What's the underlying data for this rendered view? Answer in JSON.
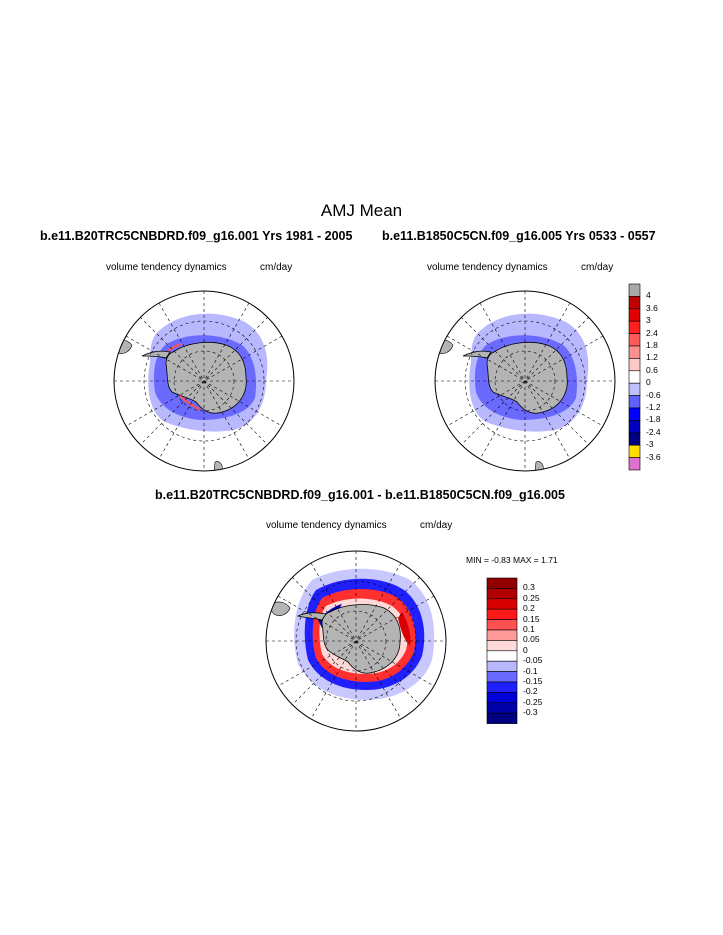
{
  "title": "AMJ Mean",
  "panels": [
    {
      "title": "b.e11.B20TRC5CNBDRD.f09_g16.001  Yrs 1981 - 2005",
      "variable": "volume tendency dynamics",
      "units": "cm/day"
    },
    {
      "title": "b.e11.B1850C5CN.f09_g16.005  Yrs 0533 - 0557",
      "variable": "volume tendency dynamics",
      "units": "cm/day"
    },
    {
      "title": "b.e11.B20TRC5CNBDRD.f09_g16.001 - b.e11.B1850C5CN.f09_g16.005",
      "variable": "volume tendency dynamics",
      "units": "cm/day",
      "stats": "MIN =   -0.83 MAX =    1.71"
    }
  ],
  "chart_data": [
    {
      "type": "heatmap",
      "projection": "south polar stereographic",
      "title": "b.e11.B20TRC5CNBDRD.f09_g16.001  Yrs 1981 - 2005",
      "colorbar": {
        "levels": [
          "4",
          "3.6",
          "3",
          "2.4",
          "1.8",
          "1.2",
          "0.6",
          "0",
          "-0.6",
          "-1.2",
          "-1.8",
          "-2.4",
          "-3",
          "-3.6"
        ],
        "colors": [
          "#a8a8a8",
          "#c00000",
          "#e00000",
          "#ff2020",
          "#ff5a5a",
          "#ff9090",
          "#ffc8c8",
          "#ffffff",
          "#c0c0ff",
          "#6060ff",
          "#0000ff",
          "#0000c0",
          "#000080",
          "#ffdd00",
          "#e070d0"
        ]
      }
    },
    {
      "type": "heatmap",
      "projection": "south polar stereographic",
      "title": "b.e11.B1850C5CN.f09_g16.005  Yrs 0533 - 0557"
    },
    {
      "type": "heatmap",
      "projection": "south polar stereographic",
      "title": "b.e11.B20TRC5CNBDRD.f09_g16.001 - b.e11.B1850C5CN.f09_g16.005",
      "min": -0.83,
      "max": 1.71,
      "colorbar": {
        "levels": [
          "0.3",
          "0.25",
          "0.2",
          "0.15",
          "0.1",
          "0.05",
          "0",
          "-0.05",
          "-0.1",
          "-0.15",
          "-0.2",
          "-0.25",
          "-0.3"
        ],
        "colors": [
          "#900000",
          "#b00000",
          "#d80000",
          "#ff1818",
          "#ff5050",
          "#ff9a9a",
          "#ffd8d8",
          "#ffffff",
          "#b8b8ff",
          "#6a6aff",
          "#2020ff",
          "#0000d8",
          "#0000a8",
          "#000080"
        ]
      }
    }
  ]
}
